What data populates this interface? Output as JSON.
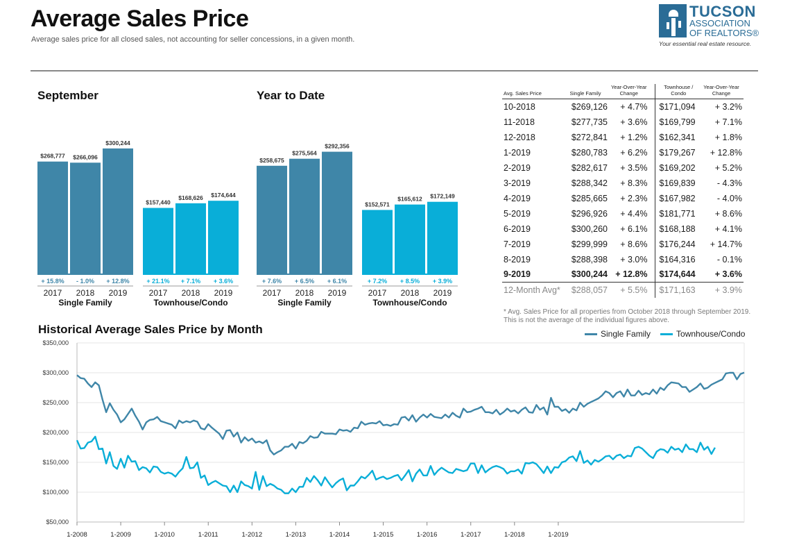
{
  "header": {
    "title": "Average Sales Price",
    "subtitle": "Average sales price for all closed sales, not accounting for seller concessions, in a given month."
  },
  "logo": {
    "line1": "TUCSON",
    "line2": "ASSOCIATION",
    "line3": "OF REALTORS®",
    "tagline": "Your essential real estate resource."
  },
  "colors": {
    "single_family": "#3f86a8",
    "townhouse": "#09aed8"
  },
  "chart_data": [
    {
      "type": "bar",
      "title": "September",
      "groups": [
        {
          "name": "Single Family",
          "categories": [
            "2017",
            "2018",
            "2019"
          ],
          "values": [
            268777,
            266096,
            300244
          ],
          "value_labels": [
            "$268,777",
            "$266,096",
            "$300,244"
          ],
          "changes": [
            "+ 15.8%",
            "- 1.0%",
            "+ 12.8%"
          ]
        },
        {
          "name": "Townhouse/Condo",
          "categories": [
            "2017",
            "2018",
            "2019"
          ],
          "values": [
            157440,
            168626,
            174644
          ],
          "value_labels": [
            "$157,440",
            "$168,626",
            "$174,644"
          ],
          "changes": [
            "+ 21.1%",
            "+ 7.1%",
            "+ 3.6%"
          ]
        }
      ]
    },
    {
      "type": "bar",
      "title": "Year to Date",
      "groups": [
        {
          "name": "Single Family",
          "categories": [
            "2017",
            "2018",
            "2019"
          ],
          "values": [
            258675,
            275564,
            292356
          ],
          "value_labels": [
            "$258,675",
            "$275,564",
            "$292,356"
          ],
          "changes": [
            "+ 7.6%",
            "+ 6.5%",
            "+ 6.1%"
          ]
        },
        {
          "name": "Townhouse/Condo",
          "categories": [
            "2017",
            "2018",
            "2019"
          ],
          "values": [
            152571,
            165612,
            172149
          ],
          "value_labels": [
            "$152,571",
            "$165,612",
            "$172,149"
          ],
          "changes": [
            "+ 7.2%",
            "+ 8.5%",
            "+ 3.9%"
          ]
        }
      ]
    },
    {
      "type": "table",
      "headers": [
        "Avg. Sales Price",
        "Single Family",
        "Year-Over-Year Change",
        "Townhouse / Condo",
        "Year-Over-Year Change"
      ],
      "rows": [
        [
          "10-2018",
          "$269,126",
          "+ 4.7%",
          "$171,094",
          "+ 3.2%"
        ],
        [
          "11-2018",
          "$277,735",
          "+ 3.6%",
          "$169,799",
          "+ 7.1%"
        ],
        [
          "12-2018",
          "$272,841",
          "+ 1.2%",
          "$162,341",
          "+ 1.8%"
        ],
        [
          "1-2019",
          "$280,783",
          "+ 6.2%",
          "$179,267",
          "+ 12.8%"
        ],
        [
          "2-2019",
          "$282,617",
          "+ 3.5%",
          "$169,202",
          "+ 5.2%"
        ],
        [
          "3-2019",
          "$288,342",
          "+ 8.3%",
          "$169,839",
          "- 4.3%"
        ],
        [
          "4-2019",
          "$285,665",
          "+ 2.3%",
          "$167,982",
          "- 4.0%"
        ],
        [
          "5-2019",
          "$296,926",
          "+ 4.4%",
          "$181,771",
          "+ 8.6%"
        ],
        [
          "6-2019",
          "$300,260",
          "+ 6.1%",
          "$168,188",
          "+ 4.1%"
        ],
        [
          "7-2019",
          "$299,999",
          "+ 8.6%",
          "$176,244",
          "+ 14.7%"
        ],
        [
          "8-2019",
          "$288,398",
          "+ 3.0%",
          "$164,316",
          "- 0.1%"
        ],
        [
          "9-2019",
          "$300,244",
          "+ 12.8%",
          "$174,644",
          "+ 3.6%"
        ]
      ],
      "summary_row": [
        "12-Month Avg*",
        "$288,057",
        "+ 5.5%",
        "$171,163",
        "+ 3.9%"
      ],
      "footnote": "* Avg. Sales Price for all properties from October 2018 through September 2019. This is not the average of the individual figures above."
    },
    {
      "type": "line",
      "title": "Historical Average Sales Price by Month",
      "x_ticks": [
        "1-2008",
        "1-2009",
        "1-2010",
        "1-2011",
        "1-2012",
        "1-2013",
        "1-2014",
        "1-2015",
        "1-2016",
        "1-2017",
        "1-2018",
        "1-2019"
      ],
      "y_ticks": [
        "$350,000",
        "$300,000",
        "$250,000",
        "$200,000",
        "$150,000",
        "$100,000",
        "$50,000"
      ],
      "ylim": [
        50000,
        350000
      ],
      "x_start": "2008-01",
      "x_end": "2019-09",
      "legend_position": "top-right",
      "series": [
        {
          "name": "Single Family",
          "values": [
            296000,
            291000,
            290000,
            282000,
            276000,
            284000,
            279000,
            255000,
            234000,
            249000,
            238000,
            230000,
            217000,
            222000,
            231000,
            240000,
            228000,
            218000,
            205000,
            217000,
            221000,
            222000,
            226000,
            219000,
            217000,
            215000,
            213000,
            207000,
            220000,
            216000,
            219000,
            217000,
            220000,
            218000,
            207000,
            205000,
            214000,
            208000,
            203000,
            198000,
            189000,
            203000,
            204000,
            193000,
            200000,
            183000,
            192000,
            186000,
            190000,
            183000,
            185000,
            182000,
            187000,
            170000,
            163000,
            167000,
            170000,
            176000,
            176000,
            181000,
            173000,
            184000,
            182000,
            186000,
            194000,
            191000,
            192000,
            201000,
            198000,
            198000,
            198000,
            197000,
            205000,
            203000,
            204000,
            201000,
            208000,
            207000,
            218000,
            213000,
            215000,
            216000,
            215000,
            219000,
            212000,
            213000,
            211000,
            214000,
            213000,
            225000,
            226000,
            220000,
            229000,
            218000,
            225000,
            230000,
            225000,
            231000,
            226000,
            225000,
            224000,
            230000,
            225000,
            233000,
            228000,
            225000,
            240000,
            234000,
            235000,
            238000,
            240000,
            243000,
            234000,
            234000,
            232000,
            238000,
            230000,
            234000,
            240000,
            235000,
            237000,
            232000,
            238000,
            242000,
            234000,
            233000,
            246000,
            238000,
            242000,
            230000,
            258000,
            243000,
            243000,
            236000,
            239000,
            233000,
            240000,
            237000,
            250000,
            243000,
            248000,
            251000,
            254000,
            257000,
            262000,
            269000,
            266000,
            259000,
            266000,
            269000,
            260000,
            272000,
            262000,
            262000,
            270000,
            263000,
            266000,
            264000,
            272000,
            265000,
            275000,
            271000,
            279000,
            284000,
            283000,
            282000,
            276000,
            276000,
            268000,
            272000,
            276000,
            282000,
            273000,
            275000,
            280000,
            283000,
            286000,
            289000,
            299000,
            300000,
            300000,
            289000,
            298000,
            300244
          ]
        },
        {
          "name": "Townhouse/Condo",
          "values": [
            187000,
            173000,
            174000,
            183000,
            185000,
            193000,
            172000,
            173000,
            148000,
            167000,
            144000,
            139000,
            156000,
            141000,
            161000,
            151000,
            152000,
            137000,
            142000,
            140000,
            133000,
            143000,
            142000,
            134000,
            131000,
            133000,
            131000,
            126000,
            134000,
            140000,
            159000,
            140000,
            141000,
            150000,
            124000,
            128000,
            112000,
            116000,
            119000,
            115000,
            111000,
            110000,
            100000,
            111000,
            100000,
            118000,
            112000,
            110000,
            106000,
            134000,
            104000,
            127000,
            110000,
            114000,
            111000,
            106000,
            104000,
            98000,
            98000,
            106000,
            100000,
            109000,
            109000,
            124000,
            117000,
            127000,
            120000,
            111000,
            125000,
            116000,
            108000,
            115000,
            120000,
            123000,
            103000,
            111000,
            111000,
            118000,
            126000,
            123000,
            129000,
            136000,
            121000,
            124000,
            126000,
            122000,
            124000,
            127000,
            129000,
            120000,
            128000,
            137000,
            118000,
            131000,
            138000,
            128000,
            128000,
            144000,
            129000,
            136000,
            141000,
            137000,
            133000,
            132000,
            139000,
            137000,
            135000,
            137000,
            148000,
            148000,
            132000,
            145000,
            133000,
            138000,
            142000,
            144000,
            142000,
            139000,
            131000,
            135000,
            135000,
            138000,
            131000,
            149000,
            148000,
            150000,
            147000,
            140000,
            132000,
            143000,
            132000,
            142000,
            141000,
            150000,
            152000,
            158000,
            160000,
            152000,
            169000,
            149000,
            153000,
            146000,
            154000,
            151000,
            155000,
            160000,
            161000,
            155000,
            161000,
            163000,
            157000,
            161000,
            160000,
            174000,
            176000,
            173000,
            167000,
            161000,
            157000,
            168000,
            172000,
            171000,
            166000,
            176000,
            171000,
            173000,
            167000,
            180000,
            172000,
            172000,
            167000,
            183000,
            171000,
            176000,
            164000,
            174644
          ]
        }
      ]
    }
  ]
}
